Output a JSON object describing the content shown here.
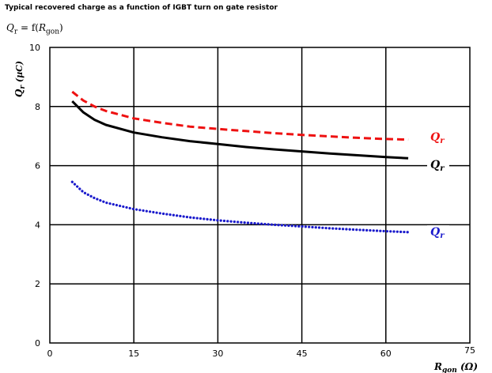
{
  "header": {
    "title": "Typical recovered charge as a function of IGBT turn on gate resistor",
    "formula_lhs": "Q",
    "formula_lhs_sub": "r",
    "formula_eq": " = f(",
    "formula_arg": "R",
    "formula_arg_sub": "gon",
    "formula_close": ")"
  },
  "chart_data": {
    "type": "line",
    "xlabel": "R",
    "xlabel_sub": "gon",
    "xlabel_unit": " (Ω)",
    "ylabel": "Q",
    "ylabel_sub": "r",
    "ylabel_unit": " (µC)",
    "xlim": [
      0,
      75
    ],
    "ylim": [
      0,
      10
    ],
    "x_ticks": [
      0,
      15,
      30,
      45,
      60,
      75
    ],
    "y_ticks": [
      0,
      2,
      4,
      6,
      8,
      10
    ],
    "grid": true,
    "series": [
      {
        "name": "Q",
        "name_sub": "r",
        "color": "#ee1111",
        "style": "dashed",
        "x": [
          4,
          6,
          8,
          10,
          15,
          20,
          25,
          30,
          35,
          40,
          45,
          50,
          55,
          60,
          64
        ],
        "y": [
          8.5,
          8.2,
          8.0,
          7.85,
          7.6,
          7.45,
          7.32,
          7.24,
          7.17,
          7.1,
          7.04,
          6.99,
          6.94,
          6.9,
          6.88
        ]
      },
      {
        "name": "Q",
        "name_sub": "r",
        "color": "#000000",
        "style": "solid",
        "x": [
          4,
          6,
          8,
          10,
          15,
          20,
          25,
          30,
          35,
          40,
          45,
          50,
          55,
          60,
          64
        ],
        "y": [
          8.18,
          7.8,
          7.55,
          7.38,
          7.12,
          6.96,
          6.83,
          6.73,
          6.63,
          6.55,
          6.48,
          6.41,
          6.35,
          6.29,
          6.25
        ]
      },
      {
        "name": "Q",
        "name_sub": "r",
        "color": "#1a1acc",
        "style": "dotted",
        "x": [
          4,
          6,
          8,
          10,
          15,
          20,
          25,
          30,
          35,
          40,
          45,
          50,
          55,
          60,
          64
        ],
        "y": [
          5.45,
          5.1,
          4.9,
          4.75,
          4.53,
          4.38,
          4.25,
          4.15,
          4.07,
          4.0,
          3.94,
          3.88,
          3.83,
          3.78,
          3.75
        ]
      }
    ]
  }
}
